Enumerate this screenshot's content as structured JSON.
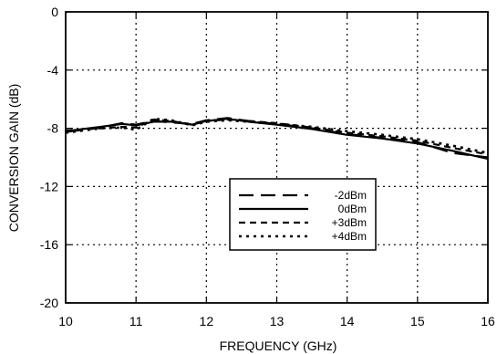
{
  "chart_data": {
    "type": "line",
    "title": "",
    "xlabel": "FREQUENCY (GHz)",
    "ylabel": "CONVERSION GAIN (dB)",
    "xlim": [
      10,
      16
    ],
    "ylim": [
      -20,
      0
    ],
    "xticks": [
      10,
      11,
      12,
      13,
      14,
      15,
      16
    ],
    "yticks": [
      0,
      -4,
      -8,
      -12,
      -16,
      -20
    ],
    "xtick_labels": [
      "10",
      "11",
      "12",
      "13",
      "14",
      "15",
      "16"
    ],
    "ytick_labels": [
      "0",
      "-4",
      "-8",
      "-12",
      "-16",
      "-20"
    ],
    "grid": true,
    "legend_position": "inside lower-right",
    "series": [
      {
        "name": "-2dBm",
        "style": "long-dash",
        "x": [
          10.0,
          10.5,
          10.8,
          11.0,
          11.25,
          11.5,
          11.8,
          12.0,
          12.3,
          12.6,
          13.0,
          13.5,
          14.0,
          14.5,
          15.0,
          15.5,
          16.0
        ],
        "y": [
          -8.25,
          -7.95,
          -7.65,
          -7.75,
          -7.5,
          -7.6,
          -7.7,
          -7.45,
          -7.3,
          -7.5,
          -7.7,
          -8.0,
          -8.4,
          -8.65,
          -8.95,
          -9.7,
          -10.0
        ]
      },
      {
        "name": "0dBm",
        "style": "solid",
        "x": [
          10.0,
          10.5,
          10.8,
          11.0,
          11.25,
          11.5,
          11.8,
          12.0,
          12.3,
          12.6,
          13.0,
          13.5,
          14.0,
          14.5,
          15.0,
          15.5,
          16.0
        ],
        "y": [
          -8.2,
          -7.9,
          -7.7,
          -7.8,
          -7.55,
          -7.55,
          -7.75,
          -7.5,
          -7.35,
          -7.55,
          -7.75,
          -8.05,
          -8.45,
          -8.7,
          -9.05,
          -9.55,
          -10.1
        ]
      },
      {
        "name": "+3dBm",
        "style": "short-dash",
        "x": [
          10.0,
          10.5,
          10.8,
          11.0,
          11.25,
          11.5,
          11.8,
          12.0,
          12.3,
          12.6,
          13.0,
          13.5,
          14.0,
          14.5,
          15.0,
          15.5,
          16.0
        ],
        "y": [
          -8.15,
          -8.0,
          -7.9,
          -7.95,
          -7.4,
          -7.5,
          -7.75,
          -7.5,
          -7.4,
          -7.5,
          -7.65,
          -7.95,
          -8.3,
          -8.55,
          -8.85,
          -9.35,
          -9.8
        ]
      },
      {
        "name": "+4dBm",
        "style": "dotted",
        "x": [
          10.0,
          10.5,
          10.8,
          11.0,
          11.25,
          11.5,
          11.8,
          12.0,
          12.3,
          12.6,
          13.0,
          13.5,
          14.0,
          14.5,
          15.0,
          15.5,
          16.0
        ],
        "y": [
          -8.3,
          -8.0,
          -7.95,
          -8.1,
          -7.35,
          -7.45,
          -7.8,
          -7.55,
          -7.45,
          -7.55,
          -7.7,
          -7.9,
          -8.2,
          -8.45,
          -8.75,
          -9.2,
          -9.7
        ]
      }
    ]
  }
}
